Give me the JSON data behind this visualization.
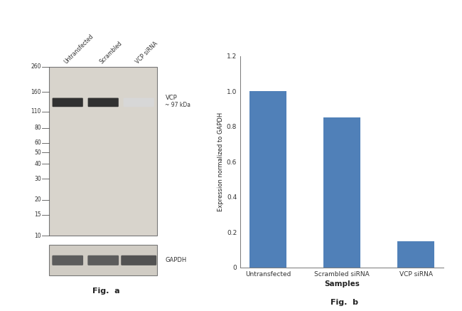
{
  "fig_a": {
    "title": "Fig.  a",
    "gel_bg": "#c8c4bc",
    "gel_bg_light": "#dedad4",
    "gel_border": "#888888",
    "marker_labels": [
      "260",
      "160",
      "110",
      "80",
      "60",
      "50",
      "40",
      "30",
      "20",
      "15",
      "10"
    ],
    "lane_labels": [
      "Untransfected",
      "Scrambled",
      "VCP siRNA"
    ],
    "vcp_label": "VCP",
    "vcp_kda_label": "~ 97 kDa",
    "gapdh_label": "GAPDH",
    "vcp_intensities": [
      0.92,
      0.92,
      0.18
    ],
    "gapdh_intensities": [
      0.8,
      0.8,
      0.85
    ]
  },
  "fig_b": {
    "title": "Fig.  b",
    "categories": [
      "Untransfected",
      "Scrambled siRNA",
      "VCP siRNA"
    ],
    "values": [
      1.0,
      0.85,
      0.15
    ],
    "bar_color": "#5080b8",
    "xlabel": "Samples",
    "ylabel": "Expression normalized to GAPDH",
    "ylim": [
      0,
      1.2
    ],
    "yticks": [
      0,
      0.2,
      0.4,
      0.6,
      0.8,
      1.0,
      1.2
    ]
  }
}
